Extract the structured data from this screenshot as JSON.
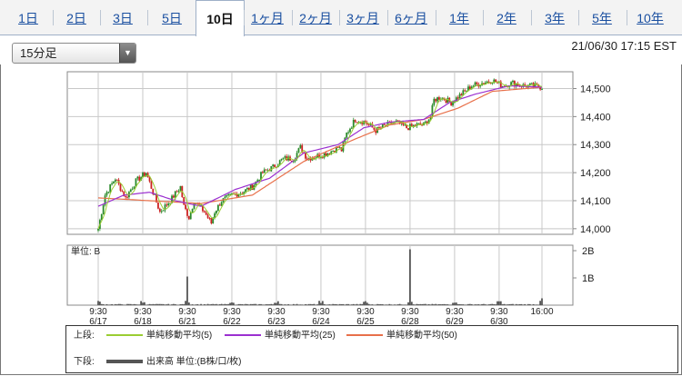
{
  "tabs": [
    {
      "label": "1日",
      "active": false
    },
    {
      "label": "2日",
      "active": false
    },
    {
      "label": "3日",
      "active": false
    },
    {
      "label": "5日",
      "active": false
    },
    {
      "label": "10日",
      "active": true
    },
    {
      "label": "1ヶ月",
      "active": false
    },
    {
      "label": "2ヶ月",
      "active": false
    },
    {
      "label": "3ヶ月",
      "active": false
    },
    {
      "label": "6ヶ月",
      "active": false
    },
    {
      "label": "1年",
      "active": false
    },
    {
      "label": "2年",
      "active": false
    },
    {
      "label": "3年",
      "active": false
    },
    {
      "label": "5年",
      "active": false
    },
    {
      "label": "10年",
      "active": false
    }
  ],
  "interval_select": {
    "value": "15分足"
  },
  "timestamp": "21/06/30 17:15 EST",
  "legend": {
    "upper_label": "上段:",
    "lower_label": "下段:",
    "ma5": "単純移動平均(5)",
    "ma25": "単純移動平均(25)",
    "ma50": "単純移動平均(50)",
    "volume": "出来高 単位:(B株/口/枚)"
  },
  "colors": {
    "up_candle": "#2a8a2a",
    "down_candle": "#cc2222",
    "ma5": "#9acd32",
    "ma25": "#9b30d0",
    "ma50": "#e8704a",
    "volume": "#555555",
    "grid": "#c8c8c8",
    "link": "#1a4fa0"
  },
  "chart_data": [
    {
      "type": "candlestick",
      "title": "",
      "ylim": [
        13980,
        14560
      ],
      "y_ticks": [
        14000,
        14100,
        14200,
        14300,
        14400,
        14500
      ],
      "y_tick_labels": [
        "14,000",
        "14,100",
        "14,200",
        "14,300",
        "14,400",
        "14,500"
      ],
      "grid": true,
      "x_ticks": [
        {
          "time": "9:30",
          "date": "6/17"
        },
        {
          "time": "9:30",
          "date": "6/18"
        },
        {
          "time": "9:30",
          "date": "6/21"
        },
        {
          "time": "9:30",
          "date": "6/22"
        },
        {
          "time": "9:30",
          "date": "6/23"
        },
        {
          "time": "9:30",
          "date": "6/24"
        },
        {
          "time": "9:30",
          "date": "6/25"
        },
        {
          "time": "9:30",
          "date": "6/28"
        },
        {
          "time": "9:30",
          "date": "6/29"
        },
        {
          "time": "9:30",
          "date": "6/30"
        },
        {
          "time": "16:00",
          "date": ""
        }
      ],
      "series_anchors": {
        "close": [
          [
            0,
            14000
          ],
          [
            4,
            14120
          ],
          [
            10,
            14180
          ],
          [
            16,
            14110
          ],
          [
            22,
            14170
          ],
          [
            28,
            14200
          ],
          [
            36,
            14060
          ],
          [
            42,
            14100
          ],
          [
            48,
            14150
          ],
          [
            50,
            14080
          ],
          [
            53,
            14040
          ],
          [
            56,
            14100
          ],
          [
            62,
            14060
          ],
          [
            66,
            14020
          ],
          [
            68,
            14060
          ],
          [
            72,
            14100
          ],
          [
            78,
            14120
          ],
          [
            84,
            14130
          ],
          [
            90,
            14150
          ],
          [
            96,
            14200
          ],
          [
            102,
            14220
          ],
          [
            108,
            14250
          ],
          [
            114,
            14250
          ],
          [
            118,
            14290
          ],
          [
            122,
            14250
          ],
          [
            128,
            14260
          ],
          [
            134,
            14270
          ],
          [
            140,
            14290
          ],
          [
            142,
            14280
          ],
          [
            145,
            14340
          ],
          [
            150,
            14390
          ],
          [
            156,
            14380
          ],
          [
            162,
            14350
          ],
          [
            168,
            14370
          ],
          [
            174,
            14380
          ],
          [
            180,
            14360
          ],
          [
            186,
            14370
          ],
          [
            190,
            14370
          ],
          [
            194,
            14400
          ],
          [
            196,
            14460
          ],
          [
            200,
            14470
          ],
          [
            206,
            14450
          ],
          [
            212,
            14480
          ],
          [
            218,
            14510
          ],
          [
            224,
            14520
          ],
          [
            230,
            14530
          ],
          [
            236,
            14510
          ],
          [
            242,
            14520
          ],
          [
            248,
            14510
          ],
          [
            254,
            14510
          ],
          [
            259,
            14505
          ]
        ],
        "ma50": [
          [
            0,
            14110
          ],
          [
            30,
            14100
          ],
          [
            60,
            14090
          ],
          [
            90,
            14120
          ],
          [
            120,
            14240
          ],
          [
            150,
            14320
          ],
          [
            170,
            14370
          ],
          [
            190,
            14390
          ],
          [
            210,
            14430
          ],
          [
            230,
            14490
          ],
          [
            259,
            14505
          ]
        ],
        "ma25": [
          [
            0,
            14080
          ],
          [
            15,
            14120
          ],
          [
            30,
            14130
          ],
          [
            45,
            14100
          ],
          [
            60,
            14080
          ],
          [
            80,
            14140
          ],
          [
            100,
            14180
          ],
          [
            120,
            14270
          ],
          [
            140,
            14300
          ],
          [
            155,
            14360
          ],
          [
            170,
            14380
          ],
          [
            190,
            14390
          ],
          [
            205,
            14450
          ],
          [
            220,
            14480
          ],
          [
            240,
            14510
          ],
          [
            259,
            14505
          ]
        ]
      },
      "bar_count": 260
    },
    {
      "type": "bar",
      "title": "",
      "ylabel": "単位: B",
      "y_ticks": [
        1,
        2
      ],
      "y_tick_labels": [
        "1B",
        "2B"
      ],
      "ylim": [
        0,
        2.2
      ],
      "values_B": [
        0.1,
        0.05,
        0.15,
        0.05,
        1.05,
        0.12,
        0.12,
        0.1,
        0.12,
        0.08,
        0.1,
        0.1,
        2.05,
        0.12,
        0.15,
        0.1,
        0.25
      ],
      "peak_positions_bar_index": [
        0,
        26,
        52,
        78,
        104,
        130,
        156,
        182,
        208,
        234,
        259
      ]
    }
  ]
}
